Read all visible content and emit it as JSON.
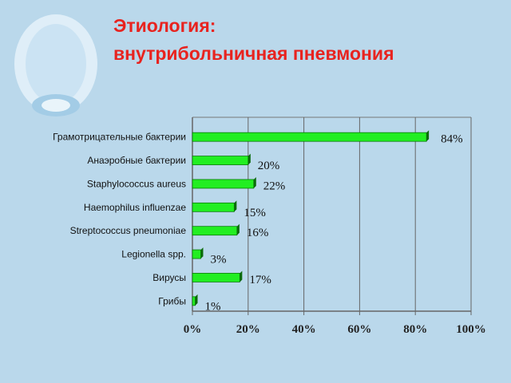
{
  "chart_data": {
    "type": "hbar",
    "title": [
      "Этиология:",
      "внутрибольничная пневмония"
    ],
    "categories": [
      "Грамотрицательные бактерии",
      "Анаэробные бактерии",
      "Staphylococcus aureus",
      "Haemophilus influenzae",
      "Streptococcus pneumoniae",
      "Legionella spp.",
      "Вирусы",
      "Грибы"
    ],
    "values": [
      84,
      20,
      22,
      15,
      16,
      3,
      17,
      1
    ],
    "value_labels": [
      "84%",
      "20%",
      "22%",
      "15%",
      "16%",
      "3%",
      "17%",
      "1%"
    ],
    "color": "#22ee22",
    "xlim": [
      0,
      100
    ],
    "xticks": [
      {
        "value": 0,
        "label": "0%"
      },
      {
        "value": 20,
        "label": "20%"
      },
      {
        "value": 40,
        "label": "40%"
      },
      {
        "value": 60,
        "label": "60%"
      },
      {
        "value": 80,
        "label": "80%"
      },
      {
        "value": 100,
        "label": "100%"
      }
    ],
    "grid": true
  }
}
